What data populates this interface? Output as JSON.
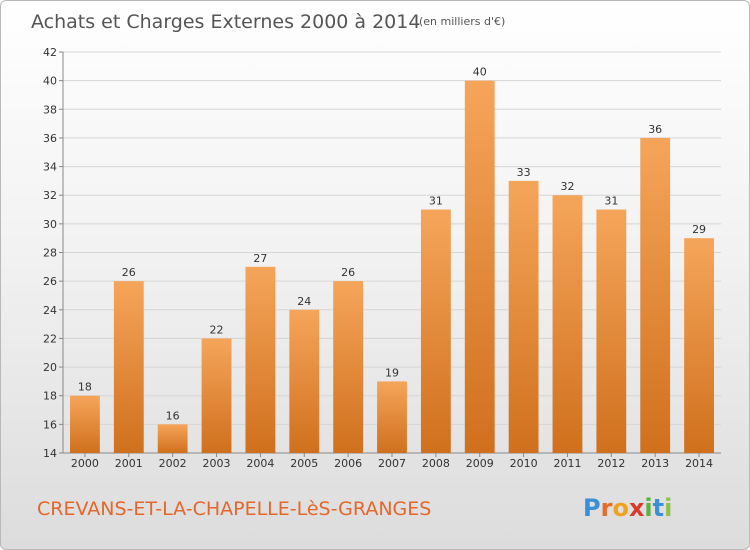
{
  "chart_data": {
    "type": "bar",
    "title": "Achats et Charges Externes 2000 à 2014",
    "subtitle": "(en milliers d'€)",
    "categories": [
      "2000",
      "2001",
      "2002",
      "2003",
      "2004",
      "2005",
      "2006",
      "2007",
      "2008",
      "2009",
      "2010",
      "2011",
      "2012",
      "2013",
      "2014"
    ],
    "values": [
      18,
      26,
      16,
      22,
      27,
      24,
      26,
      19,
      31,
      40,
      33,
      32,
      31,
      36,
      29
    ],
    "ylim": [
      14,
      42
    ],
    "yticks": [
      14,
      16,
      18,
      20,
      22,
      24,
      26,
      28,
      30,
      32,
      34,
      36,
      38,
      40,
      42
    ],
    "grid": true,
    "bar_color_top": "#f5a55a",
    "bar_color_bottom": "#d0701d"
  },
  "footer": {
    "commune": "CREVANS-ET-LA-CHAPELLE-LèS-GRANGES",
    "logo_text": "Proxiti",
    "logo_letters": [
      "P",
      "r",
      "o",
      "x",
      "i",
      "t",
      "i"
    ],
    "logo_colors": [
      "#3a8fd6",
      "#e86a22",
      "#f0a21e",
      "#d93a2b",
      "#5cb33d",
      "#3a8fd6",
      "#8bc34a"
    ]
  }
}
